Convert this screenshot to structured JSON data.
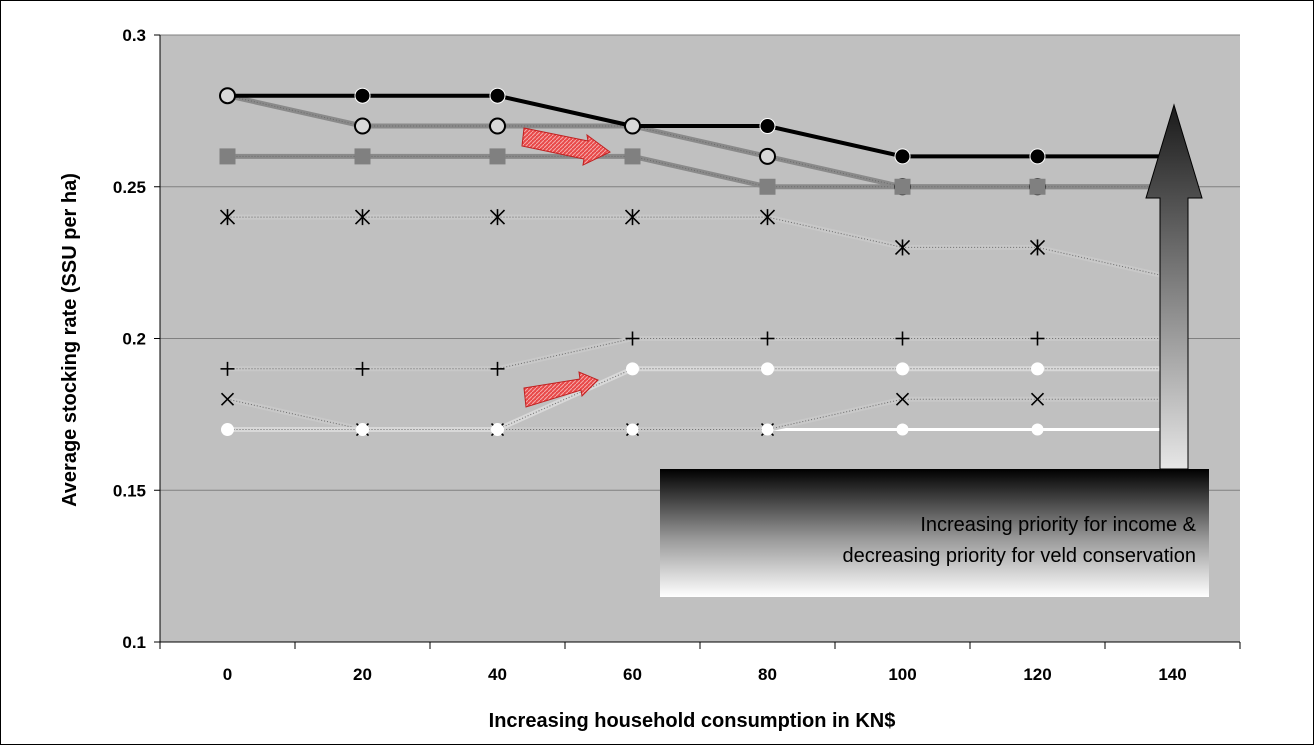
{
  "chart_data": {
    "type": "line",
    "x": [
      0,
      20,
      40,
      60,
      80,
      100,
      120,
      140
    ],
    "xlabel": "Increasing household consumption in KN$",
    "ylabel": "Average stocking rate (SSU per ha)",
    "ylim": [
      0.1,
      0.3
    ],
    "yticks": [
      "0.1",
      "0.15",
      "0.2",
      "0.25",
      "0.3"
    ],
    "xticks": [
      "0",
      "20",
      "40",
      "60",
      "80",
      "100",
      "120",
      "140"
    ],
    "grid": true,
    "series": [
      {
        "marker": "black-circle",
        "line": "#000000",
        "values": [
          0.28,
          0.28,
          0.28,
          0.27,
          0.27,
          0.26,
          0.26,
          0.26
        ]
      },
      {
        "marker": "white-outlined-circle",
        "line": "#8a8a8a",
        "values": [
          0.28,
          0.27,
          0.27,
          0.27,
          0.26,
          0.25,
          0.25,
          0.25
        ]
      },
      {
        "marker": "grey-square",
        "line": "#8a8a8a",
        "values": [
          0.26,
          0.26,
          0.26,
          0.26,
          0.25,
          0.25,
          0.25,
          0.25
        ]
      },
      {
        "marker": "asterisk",
        "line": "#c8c8c8",
        "values": [
          0.24,
          0.24,
          0.24,
          0.24,
          0.24,
          0.23,
          0.23,
          0.22
        ]
      },
      {
        "marker": "plus",
        "line": "#c8c8c8",
        "values": [
          0.19,
          0.19,
          0.19,
          0.2,
          0.2,
          0.2,
          0.2,
          0.2
        ]
      },
      {
        "marker": "white-circle",
        "line": "#d8d8d8",
        "values": [
          0.17,
          0.17,
          0.17,
          0.19,
          0.19,
          0.19,
          0.19,
          0.19
        ]
      },
      {
        "marker": "x-mark",
        "line": "#c8c8c8",
        "values": [
          0.18,
          0.17,
          0.17,
          0.17,
          0.17,
          0.18,
          0.18,
          0.18
        ]
      },
      {
        "marker": "small-white-circle",
        "line": "#ffffff",
        "values": [
          0.17,
          0.17,
          0.17,
          0.17,
          0.17,
          0.17,
          0.17,
          0.17
        ]
      }
    ],
    "annotations": {
      "note_line1": "Increasing priority for income &",
      "note_line2": "decreasing priority for veld conservation"
    },
    "colors": {
      "plot_bg": "#c0c0c0",
      "highlight_arrow": "#e03030"
    }
  }
}
